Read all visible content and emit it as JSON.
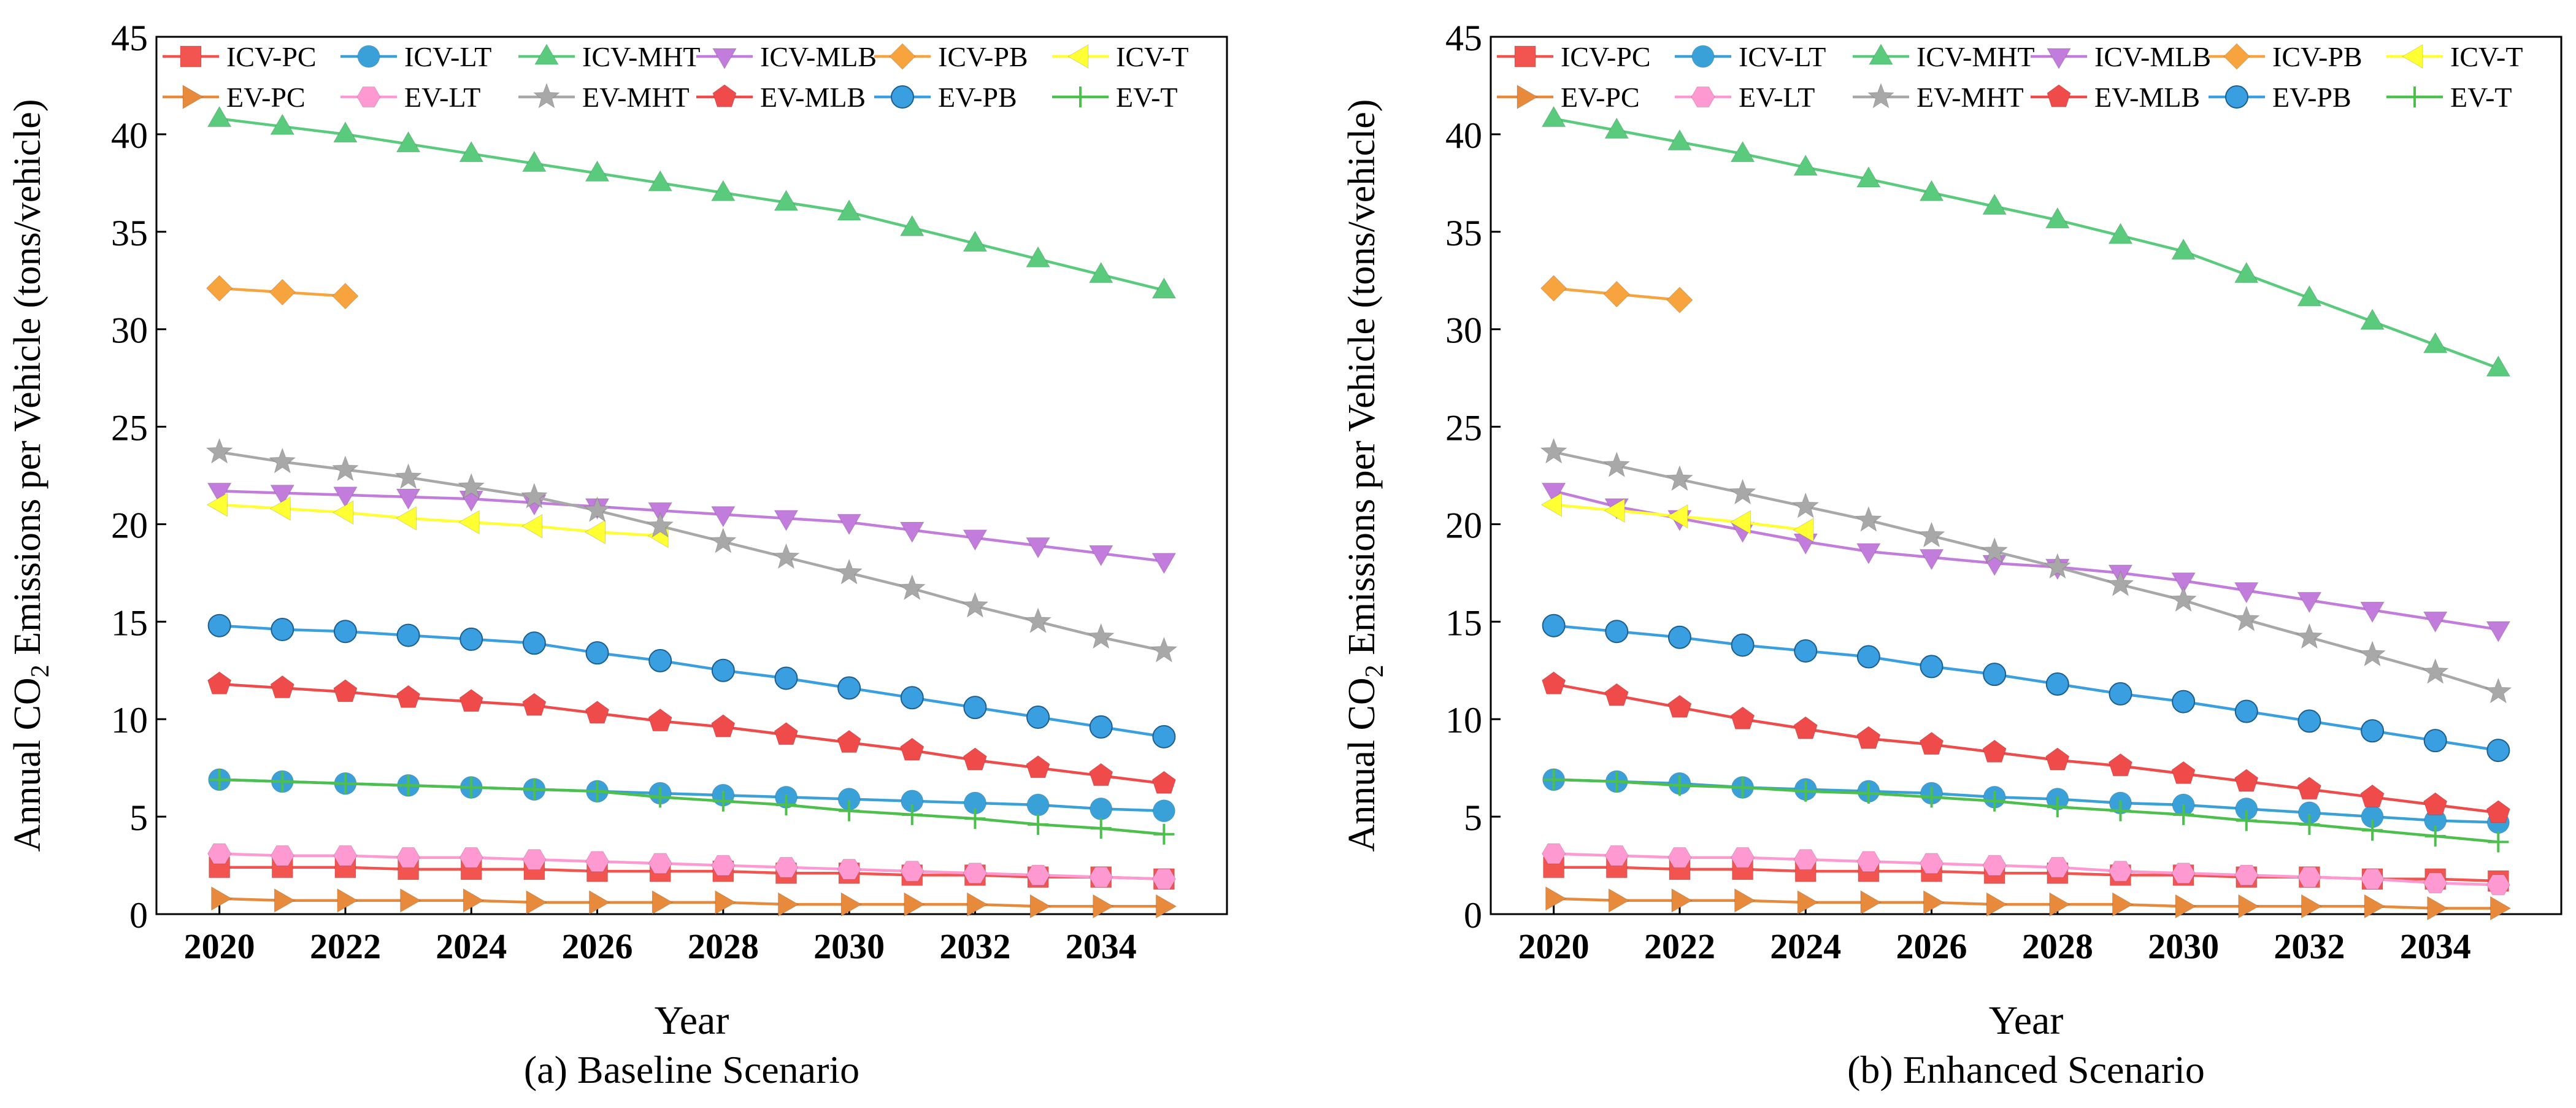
{
  "figure": {
    "shared": {
      "ylabel_prefix": "Annual CO",
      "ylabel_sub": "2",
      "ylabel_suffix": " Emissions per Vehicle (tons/vehicle)",
      "xlabel": "Year"
    }
  },
  "chart_data": [
    {
      "type": "line",
      "caption": "(a) Baseline Scenario",
      "xlabel": "Year",
      "ylabel": "Annual CO2 Emissions per Vehicle (tons/vehicle)",
      "xlim": [
        2019,
        2036
      ],
      "ylim": [
        0,
        45
      ],
      "xticks": [
        2020,
        2022,
        2024,
        2026,
        2028,
        2030,
        2032,
        2034
      ],
      "yticks": [
        0,
        5,
        10,
        15,
        20,
        25,
        30,
        35,
        40,
        45
      ],
      "legend": "top, inside plot, 6 columns x 2 rows",
      "series": [
        {
          "name": "ICV-PC",
          "marker": "square",
          "color": "#F2544F",
          "x": [
            2020,
            2021,
            2022,
            2023,
            2024,
            2025,
            2026,
            2027,
            2028,
            2029,
            2030,
            2031,
            2032,
            2033,
            2034,
            2035
          ],
          "values": [
            2.4,
            2.4,
            2.4,
            2.3,
            2.3,
            2.3,
            2.2,
            2.2,
            2.2,
            2.1,
            2.1,
            2.0,
            2.0,
            1.9,
            1.9,
            1.8
          ]
        },
        {
          "name": "ICV-LT",
          "marker": "circle",
          "color": "#3AA0D8",
          "x": [
            2020,
            2021,
            2022,
            2023,
            2024,
            2025,
            2026,
            2027,
            2028,
            2029,
            2030,
            2031,
            2032,
            2033,
            2034,
            2035
          ],
          "values": [
            6.9,
            6.8,
            6.7,
            6.6,
            6.5,
            6.4,
            6.3,
            6.2,
            6.1,
            6.0,
            5.9,
            5.8,
            5.7,
            5.6,
            5.4,
            5.3
          ]
        },
        {
          "name": "ICV-MHT",
          "marker": "triangle-up",
          "color": "#5ACB7D",
          "x": [
            2020,
            2021,
            2022,
            2023,
            2024,
            2025,
            2026,
            2027,
            2028,
            2029,
            2030,
            2031,
            2032,
            2033,
            2034,
            2035
          ],
          "values": [
            40.8,
            40.4,
            40.0,
            39.5,
            39.0,
            38.5,
            38.0,
            37.5,
            37.0,
            36.5,
            36.0,
            35.2,
            34.4,
            33.6,
            32.8,
            32.0
          ]
        },
        {
          "name": "ICV-MLB",
          "marker": "triangle-down",
          "color": "#C27CDB",
          "x": [
            2020,
            2021,
            2022,
            2023,
            2024,
            2025,
            2026,
            2027,
            2028,
            2029,
            2030,
            2031,
            2032,
            2033,
            2034,
            2035
          ],
          "values": [
            21.7,
            21.6,
            21.5,
            21.4,
            21.3,
            21.1,
            20.9,
            20.7,
            20.5,
            20.3,
            20.1,
            19.7,
            19.3,
            18.9,
            18.5,
            18.1
          ]
        },
        {
          "name": "ICV-PB",
          "marker": "diamond",
          "color": "#F7A43F",
          "x": [
            2020,
            2021,
            2022
          ],
          "values": [
            32.1,
            31.9,
            31.7
          ]
        },
        {
          "name": "ICV-T",
          "marker": "triangle-left",
          "color": "#FFFF33",
          "x": [
            2020,
            2021,
            2022,
            2023,
            2024,
            2025,
            2026,
            2027
          ],
          "values": [
            21.0,
            20.8,
            20.6,
            20.3,
            20.1,
            19.9,
            19.6,
            19.4
          ]
        },
        {
          "name": "EV-PC",
          "marker": "triangle-right",
          "color": "#E88A3C",
          "x": [
            2020,
            2021,
            2022,
            2023,
            2024,
            2025,
            2026,
            2027,
            2028,
            2029,
            2030,
            2031,
            2032,
            2033,
            2034,
            2035
          ],
          "values": [
            0.8,
            0.7,
            0.7,
            0.7,
            0.7,
            0.6,
            0.6,
            0.6,
            0.6,
            0.5,
            0.5,
            0.5,
            0.5,
            0.4,
            0.4,
            0.4
          ]
        },
        {
          "name": "EV-LT",
          "marker": "hexagon",
          "color": "#FF99D2",
          "x": [
            2020,
            2021,
            2022,
            2023,
            2024,
            2025,
            2026,
            2027,
            2028,
            2029,
            2030,
            2031,
            2032,
            2033,
            2034,
            2035
          ],
          "values": [
            3.1,
            3.0,
            3.0,
            2.9,
            2.9,
            2.8,
            2.7,
            2.6,
            2.5,
            2.4,
            2.3,
            2.2,
            2.1,
            2.0,
            1.9,
            1.8
          ]
        },
        {
          "name": "EV-MHT",
          "marker": "star",
          "color": "#A8A8A8",
          "x": [
            2020,
            2021,
            2022,
            2023,
            2024,
            2025,
            2026,
            2027,
            2028,
            2029,
            2030,
            2031,
            2032,
            2033,
            2034,
            2035
          ],
          "values": [
            23.7,
            23.2,
            22.8,
            22.4,
            21.9,
            21.4,
            20.7,
            19.9,
            19.1,
            18.3,
            17.5,
            16.7,
            15.8,
            15.0,
            14.2,
            13.5
          ]
        },
        {
          "name": "EV-MLB",
          "marker": "pentagon",
          "color": "#EF4B4B",
          "x": [
            2020,
            2021,
            2022,
            2023,
            2024,
            2025,
            2026,
            2027,
            2028,
            2029,
            2030,
            2031,
            2032,
            2033,
            2034,
            2035
          ],
          "values": [
            11.8,
            11.6,
            11.4,
            11.1,
            10.9,
            10.7,
            10.3,
            9.9,
            9.6,
            9.2,
            8.8,
            8.4,
            7.9,
            7.5,
            7.1,
            6.7
          ]
        },
        {
          "name": "EV-PB",
          "marker": "sphere",
          "color": "#3A9FE0",
          "x": [
            2020,
            2021,
            2022,
            2023,
            2024,
            2025,
            2026,
            2027,
            2028,
            2029,
            2030,
            2031,
            2032,
            2033,
            2034,
            2035
          ],
          "values": [
            14.8,
            14.6,
            14.5,
            14.3,
            14.1,
            13.9,
            13.4,
            13.0,
            12.5,
            12.1,
            11.6,
            11.1,
            10.6,
            10.1,
            9.6,
            9.1
          ]
        },
        {
          "name": "EV-T",
          "marker": "plus",
          "color": "#4CBF4C",
          "x": [
            2020,
            2021,
            2022,
            2023,
            2024,
            2025,
            2026,
            2027,
            2028,
            2029,
            2030,
            2031,
            2032,
            2033,
            2034,
            2035
          ],
          "values": [
            6.9,
            6.8,
            6.7,
            6.6,
            6.5,
            6.4,
            6.3,
            6.0,
            5.8,
            5.6,
            5.3,
            5.1,
            4.9,
            4.6,
            4.4,
            4.1
          ]
        }
      ]
    },
    {
      "type": "line",
      "caption": "(b) Enhanced Scenario",
      "xlabel": "Year",
      "ylabel": "Annual CO2 Emissions per Vehicle (tons/vehicle)",
      "xlim": [
        2019,
        2036
      ],
      "ylim": [
        0,
        45
      ],
      "xticks": [
        2020,
        2022,
        2024,
        2026,
        2028,
        2030,
        2032,
        2034
      ],
      "yticks": [
        0,
        5,
        10,
        15,
        20,
        25,
        30,
        35,
        40,
        45
      ],
      "legend": "top, inside plot, 6 columns x 2 rows",
      "series": [
        {
          "name": "ICV-PC",
          "marker": "square",
          "color": "#F2544F",
          "x": [
            2020,
            2021,
            2022,
            2023,
            2024,
            2025,
            2026,
            2027,
            2028,
            2029,
            2030,
            2031,
            2032,
            2033,
            2034,
            2035
          ],
          "values": [
            2.4,
            2.4,
            2.3,
            2.3,
            2.2,
            2.2,
            2.2,
            2.1,
            2.1,
            2.0,
            2.0,
            1.9,
            1.9,
            1.8,
            1.8,
            1.7
          ]
        },
        {
          "name": "ICV-LT",
          "marker": "circle",
          "color": "#3AA0D8",
          "x": [
            2020,
            2021,
            2022,
            2023,
            2024,
            2025,
            2026,
            2027,
            2028,
            2029,
            2030,
            2031,
            2032,
            2033,
            2034,
            2035
          ],
          "values": [
            6.9,
            6.8,
            6.7,
            6.5,
            6.4,
            6.3,
            6.2,
            6.0,
            5.9,
            5.7,
            5.6,
            5.4,
            5.2,
            5.0,
            4.8,
            4.7
          ]
        },
        {
          "name": "ICV-MHT",
          "marker": "triangle-up",
          "color": "#5ACB7D",
          "x": [
            2020,
            2021,
            2022,
            2023,
            2024,
            2025,
            2026,
            2027,
            2028,
            2029,
            2030,
            2031,
            2032,
            2033,
            2034,
            2035
          ],
          "values": [
            40.8,
            40.2,
            39.6,
            39.0,
            38.3,
            37.7,
            37.0,
            36.3,
            35.6,
            34.8,
            34.0,
            32.8,
            31.6,
            30.4,
            29.2,
            28.0
          ]
        },
        {
          "name": "ICV-MLB",
          "marker": "triangle-down",
          "color": "#C27CDB",
          "x": [
            2020,
            2021,
            2022,
            2023,
            2024,
            2025,
            2026,
            2027,
            2028,
            2029,
            2030,
            2031,
            2032,
            2033,
            2034,
            2035
          ],
          "values": [
            21.7,
            20.9,
            20.3,
            19.7,
            19.1,
            18.6,
            18.3,
            18.0,
            17.8,
            17.5,
            17.1,
            16.6,
            16.1,
            15.6,
            15.1,
            14.6
          ]
        },
        {
          "name": "ICV-PB",
          "marker": "diamond",
          "color": "#F7A43F",
          "x": [
            2020,
            2021,
            2022
          ],
          "values": [
            32.1,
            31.8,
            31.5
          ]
        },
        {
          "name": "ICV-T",
          "marker": "triangle-left",
          "color": "#FFFF33",
          "x": [
            2020,
            2021,
            2022,
            2023,
            2024
          ],
          "values": [
            21.0,
            20.7,
            20.4,
            20.1,
            19.7
          ]
        },
        {
          "name": "EV-PC",
          "marker": "triangle-right",
          "color": "#E88A3C",
          "x": [
            2020,
            2021,
            2022,
            2023,
            2024,
            2025,
            2026,
            2027,
            2028,
            2029,
            2030,
            2031,
            2032,
            2033,
            2034,
            2035
          ],
          "values": [
            0.8,
            0.7,
            0.7,
            0.7,
            0.6,
            0.6,
            0.6,
            0.5,
            0.5,
            0.5,
            0.4,
            0.4,
            0.4,
            0.4,
            0.3,
            0.3
          ]
        },
        {
          "name": "EV-LT",
          "marker": "hexagon",
          "color": "#FF99D2",
          "x": [
            2020,
            2021,
            2022,
            2023,
            2024,
            2025,
            2026,
            2027,
            2028,
            2029,
            2030,
            2031,
            2032,
            2033,
            2034,
            2035
          ],
          "values": [
            3.1,
            3.0,
            2.9,
            2.9,
            2.8,
            2.7,
            2.6,
            2.5,
            2.4,
            2.2,
            2.1,
            2.0,
            1.9,
            1.8,
            1.6,
            1.5
          ]
        },
        {
          "name": "EV-MHT",
          "marker": "star",
          "color": "#A8A8A8",
          "x": [
            2020,
            2021,
            2022,
            2023,
            2024,
            2025,
            2026,
            2027,
            2028,
            2029,
            2030,
            2031,
            2032,
            2033,
            2034,
            2035
          ],
          "values": [
            23.7,
            23.0,
            22.3,
            21.6,
            20.9,
            20.2,
            19.4,
            18.6,
            17.8,
            16.9,
            16.1,
            15.1,
            14.2,
            13.3,
            12.4,
            11.4
          ]
        },
        {
          "name": "EV-MLB",
          "marker": "pentagon",
          "color": "#EF4B4B",
          "x": [
            2020,
            2021,
            2022,
            2023,
            2024,
            2025,
            2026,
            2027,
            2028,
            2029,
            2030,
            2031,
            2032,
            2033,
            2034,
            2035
          ],
          "values": [
            11.8,
            11.2,
            10.6,
            10.0,
            9.5,
            9.0,
            8.7,
            8.3,
            7.9,
            7.6,
            7.2,
            6.8,
            6.4,
            6.0,
            5.6,
            5.2
          ]
        },
        {
          "name": "EV-PB",
          "marker": "sphere",
          "color": "#3A9FE0",
          "x": [
            2020,
            2021,
            2022,
            2023,
            2024,
            2025,
            2026,
            2027,
            2028,
            2029,
            2030,
            2031,
            2032,
            2033,
            2034,
            2035
          ],
          "values": [
            14.8,
            14.5,
            14.2,
            13.8,
            13.5,
            13.2,
            12.7,
            12.3,
            11.8,
            11.3,
            10.9,
            10.4,
            9.9,
            9.4,
            8.9,
            8.4
          ]
        },
        {
          "name": "EV-T",
          "marker": "plus",
          "color": "#4CBF4C",
          "x": [
            2020,
            2021,
            2022,
            2023,
            2024,
            2025,
            2026,
            2027,
            2028,
            2029,
            2030,
            2031,
            2032,
            2033,
            2034,
            2035
          ],
          "values": [
            6.9,
            6.8,
            6.6,
            6.5,
            6.3,
            6.2,
            6.0,
            5.8,
            5.5,
            5.3,
            5.1,
            4.8,
            4.6,
            4.3,
            4.0,
            3.7
          ]
        }
      ]
    }
  ]
}
